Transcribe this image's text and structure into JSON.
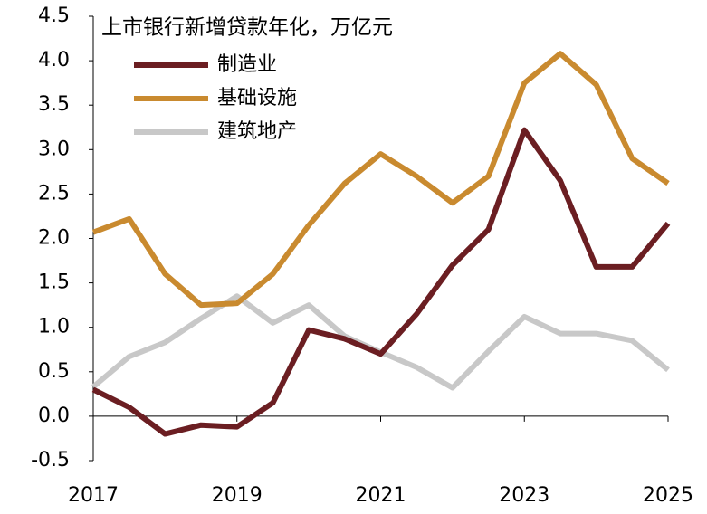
{
  "chart_data": {
    "type": "line",
    "title": "上市银行新增贷款年化，万亿元",
    "x": [
      2017,
      2017.5,
      2018,
      2018.5,
      2019,
      2019.5,
      2020,
      2020.5,
      2021,
      2021.5,
      2022,
      2022.5,
      2023,
      2023.5,
      2024,
      2024.5,
      2025
    ],
    "series": [
      {
        "name": "制造业",
        "color": "#6b1e22",
        "values": [
          0.3,
          0.1,
          -0.2,
          -0.1,
          -0.12,
          0.15,
          0.97,
          0.87,
          0.7,
          1.15,
          1.7,
          2.1,
          3.22,
          2.65,
          1.68,
          1.68,
          2.17
        ]
      },
      {
        "name": "基础设施",
        "color": "#c98a2f",
        "values": [
          2.07,
          2.22,
          1.6,
          1.25,
          1.27,
          1.6,
          2.15,
          2.62,
          2.95,
          2.7,
          2.4,
          2.7,
          3.75,
          4.08,
          3.73,
          2.9,
          2.62
        ]
      },
      {
        "name": "建筑地产",
        "color": "#c8c8c8",
        "values": [
          0.33,
          0.67,
          0.83,
          1.1,
          1.35,
          1.05,
          1.25,
          0.9,
          0.72,
          0.55,
          0.32,
          0.73,
          1.12,
          0.93,
          0.93,
          0.85,
          0.52
        ]
      }
    ],
    "xlim": [
      2017,
      2025
    ],
    "xticks": [
      2017,
      2019,
      2021,
      2023,
      2025
    ],
    "ylim": [
      -0.5,
      4.5
    ],
    "yticks": [
      -0.5,
      {
        "value": 0,
        "label": "0.0"
      },
      0.5,
      {
        "value": 1,
        "label": "1.0"
      },
      1.5,
      {
        "value": 2,
        "label": "2.0"
      },
      2.5,
      {
        "value": 3,
        "label": "3.0"
      },
      3.5,
      {
        "value": 4,
        "label": "4.0"
      },
      4.5
    ],
    "legend": "upper-left",
    "grid": false
  }
}
